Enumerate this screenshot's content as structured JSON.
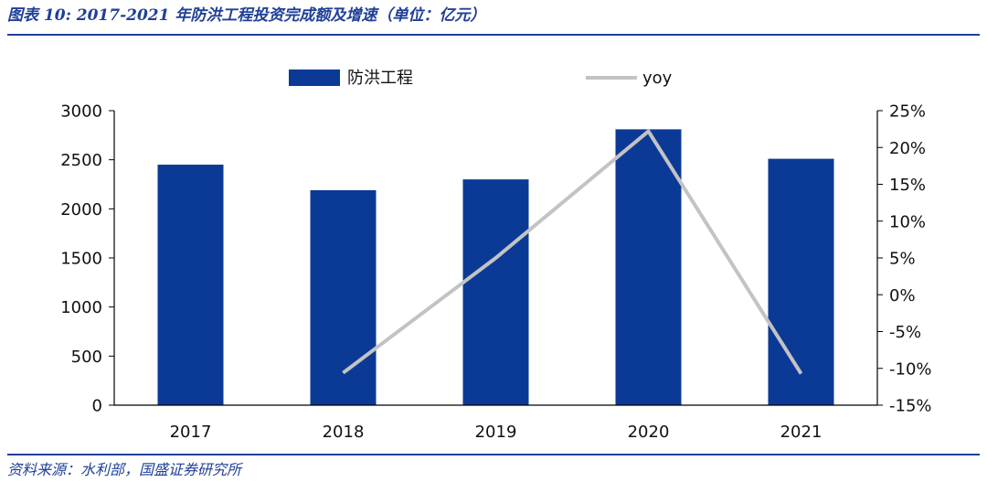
{
  "header": {
    "title": "图表 10:  2017-2021 年防洪工程投资完成额及增速（单位：亿元）"
  },
  "footer": {
    "source": "资料来源：水利部，国盛证券研究所"
  },
  "colors": {
    "bar": "#0b3a96",
    "line": "#c3c3c3",
    "accent": "#1f3f99"
  },
  "chart_data": {
    "type": "bar",
    "categories": [
      "2017",
      "2018",
      "2019",
      "2020",
      "2021"
    ],
    "series": [
      {
        "name": "防洪工程",
        "type": "bar",
        "axis": "left",
        "values": [
          2450,
          2190,
          2300,
          2810,
          2510
        ]
      },
      {
        "name": "yoy",
        "type": "line",
        "axis": "right",
        "values": [
          null,
          -10.6,
          5.0,
          22.2,
          -10.7
        ]
      }
    ],
    "ylim_left": [
      0,
      3000
    ],
    "yticks_left": [
      "0",
      "500",
      "1000",
      "1500",
      "2000",
      "2500",
      "3000"
    ],
    "ylim_right": [
      -15,
      25
    ],
    "yticks_right": [
      "-15%",
      "-10%",
      "-5%",
      "0%",
      "5%",
      "10%",
      "15%",
      "20%",
      "25%"
    ],
    "grid": false,
    "legend_position": "top"
  }
}
